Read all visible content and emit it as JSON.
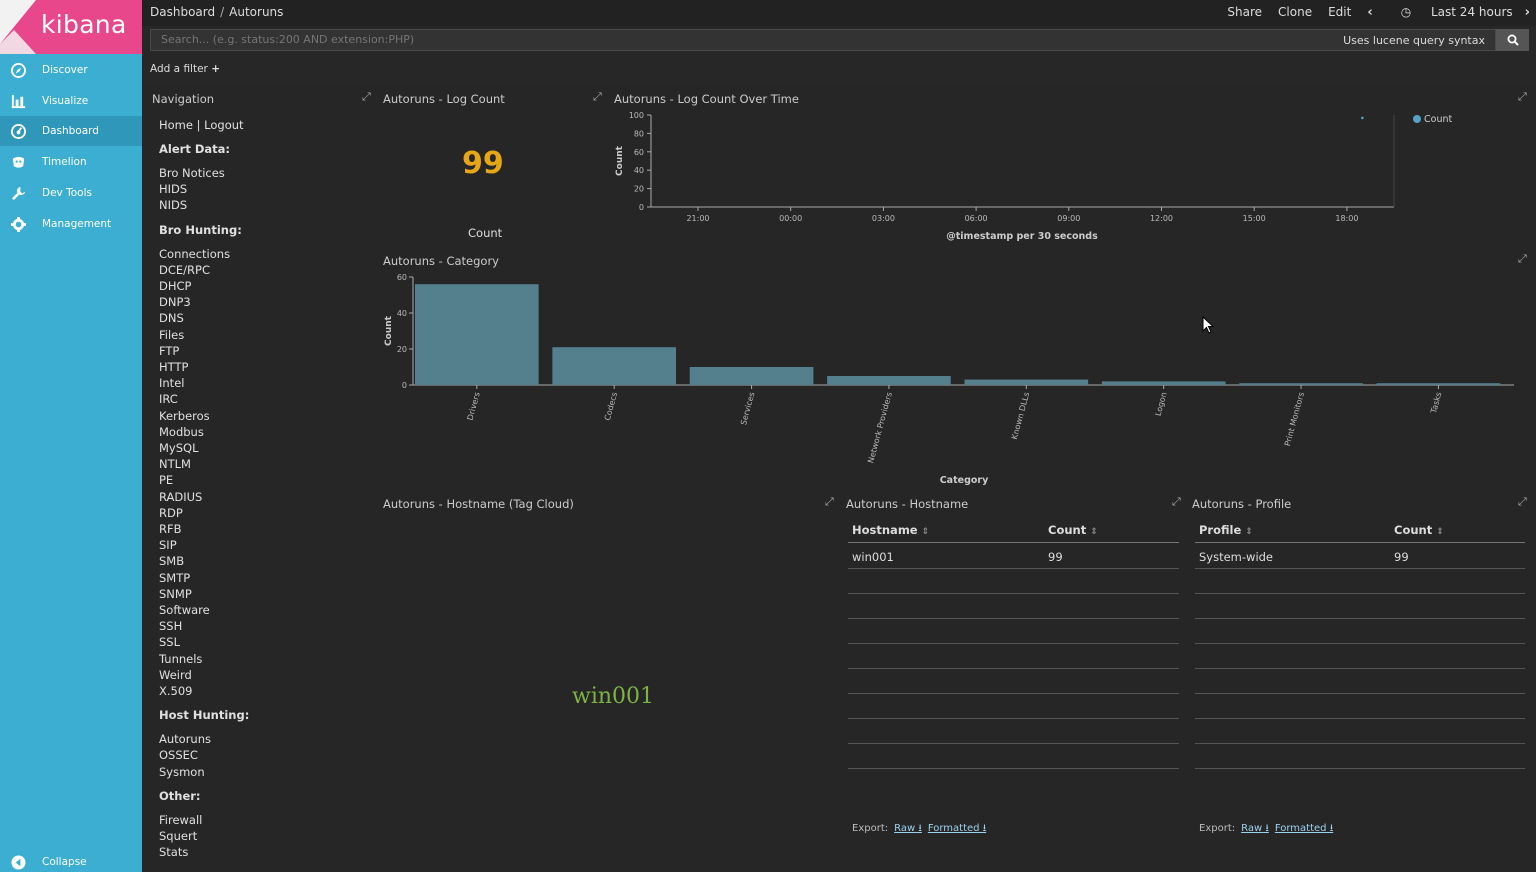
{
  "sidebar": {
    "logo": "kibana",
    "items": [
      {
        "label": "Discover",
        "icon": "compass-icon"
      },
      {
        "label": "Visualize",
        "icon": "bar-chart-icon"
      },
      {
        "label": "Dashboard",
        "icon": "dashboard-icon"
      },
      {
        "label": "Timelion",
        "icon": "timelion-icon"
      },
      {
        "label": "Dev Tools",
        "icon": "wrench-icon"
      },
      {
        "label": "Management",
        "icon": "gear-icon"
      }
    ],
    "collapse_label": "Collapse"
  },
  "topbar": {
    "breadcrumb": [
      "Dashboard",
      "Autoruns"
    ],
    "separator": "/",
    "share": "Share",
    "clone": "Clone",
    "edit": "Edit",
    "time_range": "Last 24 hours"
  },
  "search": {
    "placeholder": "Search... (e.g. status:200 AND extension:PHP)",
    "hint": "Uses lucene query syntax"
  },
  "filter": {
    "add_label": "Add a filter"
  },
  "navigation_panel": {
    "title": "Navigation",
    "links": {
      "home": "Home",
      "sep": "|",
      "logout": "Logout"
    },
    "sections": [
      {
        "heading": "Alert Data:",
        "items": [
          "Bro Notices",
          "HIDS",
          "NIDS"
        ]
      },
      {
        "heading": "Bro Hunting:",
        "items": [
          "Connections",
          "DCE/RPC",
          "DHCP",
          "DNP3",
          "DNS",
          "Files",
          "FTP",
          "HTTP",
          "Intel",
          "IRC",
          "Kerberos",
          "Modbus",
          "MySQL",
          "NTLM",
          "PE",
          "RADIUS",
          "RDP",
          "RFB",
          "SIP",
          "SMB",
          "SMTP",
          "SNMP",
          "Software",
          "SSH",
          "SSL",
          "Tunnels",
          "Weird",
          "X.509"
        ]
      },
      {
        "heading": "Host Hunting:",
        "items": [
          "Autoruns",
          "OSSEC",
          "Sysmon"
        ]
      },
      {
        "heading": "Other:",
        "items": [
          "Firewall",
          "Squert",
          "Stats"
        ]
      }
    ]
  },
  "log_count_panel": {
    "title": "Autoruns - Log Count",
    "value": "99",
    "label": "Count"
  },
  "chart_data": [
    {
      "type": "line",
      "title": "Autoruns - Log Count Over Time",
      "xlabel": "@timestamp per 30 seconds",
      "ylabel": "Count",
      "ylim": [
        0,
        100
      ],
      "yticks": [
        "0",
        "20",
        "40",
        "60",
        "80",
        "100"
      ],
      "xticks": [
        "21:00",
        "00:00",
        "03:00",
        "06:00",
        "09:00",
        "12:00",
        "15:00",
        "18:00"
      ],
      "legend": "top-right",
      "series": [
        {
          "name": "Count",
          "color": "#57a0c8",
          "points": [
            {
              "x": "18:30",
              "y": 99
            }
          ]
        }
      ]
    },
    {
      "type": "bar",
      "title": "Autoruns - Category",
      "xlabel": "Category",
      "ylabel": "Count",
      "ylim": [
        0,
        60
      ],
      "yticks": [
        "0",
        "20",
        "40",
        "60"
      ],
      "categories": [
        "Drivers",
        "Codecs",
        "Services",
        "Network Providers",
        "Known DLLs",
        "Logon",
        "Print Monitors",
        "Tasks"
      ],
      "values": [
        56,
        21,
        10,
        5,
        3,
        2,
        1,
        1
      ],
      "color": "#54808e"
    }
  ],
  "tagcloud_panel": {
    "title": "Autoruns - Hostname (Tag Cloud)",
    "word": "win001"
  },
  "hostname_table": {
    "title": "Autoruns - Hostname",
    "headers": [
      "Hostname",
      "Count"
    ],
    "rows": [
      [
        "win001",
        "99"
      ]
    ],
    "export_label": "Export:",
    "raw": "Raw",
    "formatted": "Formatted"
  },
  "profile_table": {
    "title": "Autoruns - Profile",
    "headers": [
      "Profile",
      "Count"
    ],
    "rows": [
      [
        "System-wide",
        "99"
      ]
    ],
    "export_label": "Export:",
    "raw": "Raw",
    "formatted": "Formatted"
  }
}
